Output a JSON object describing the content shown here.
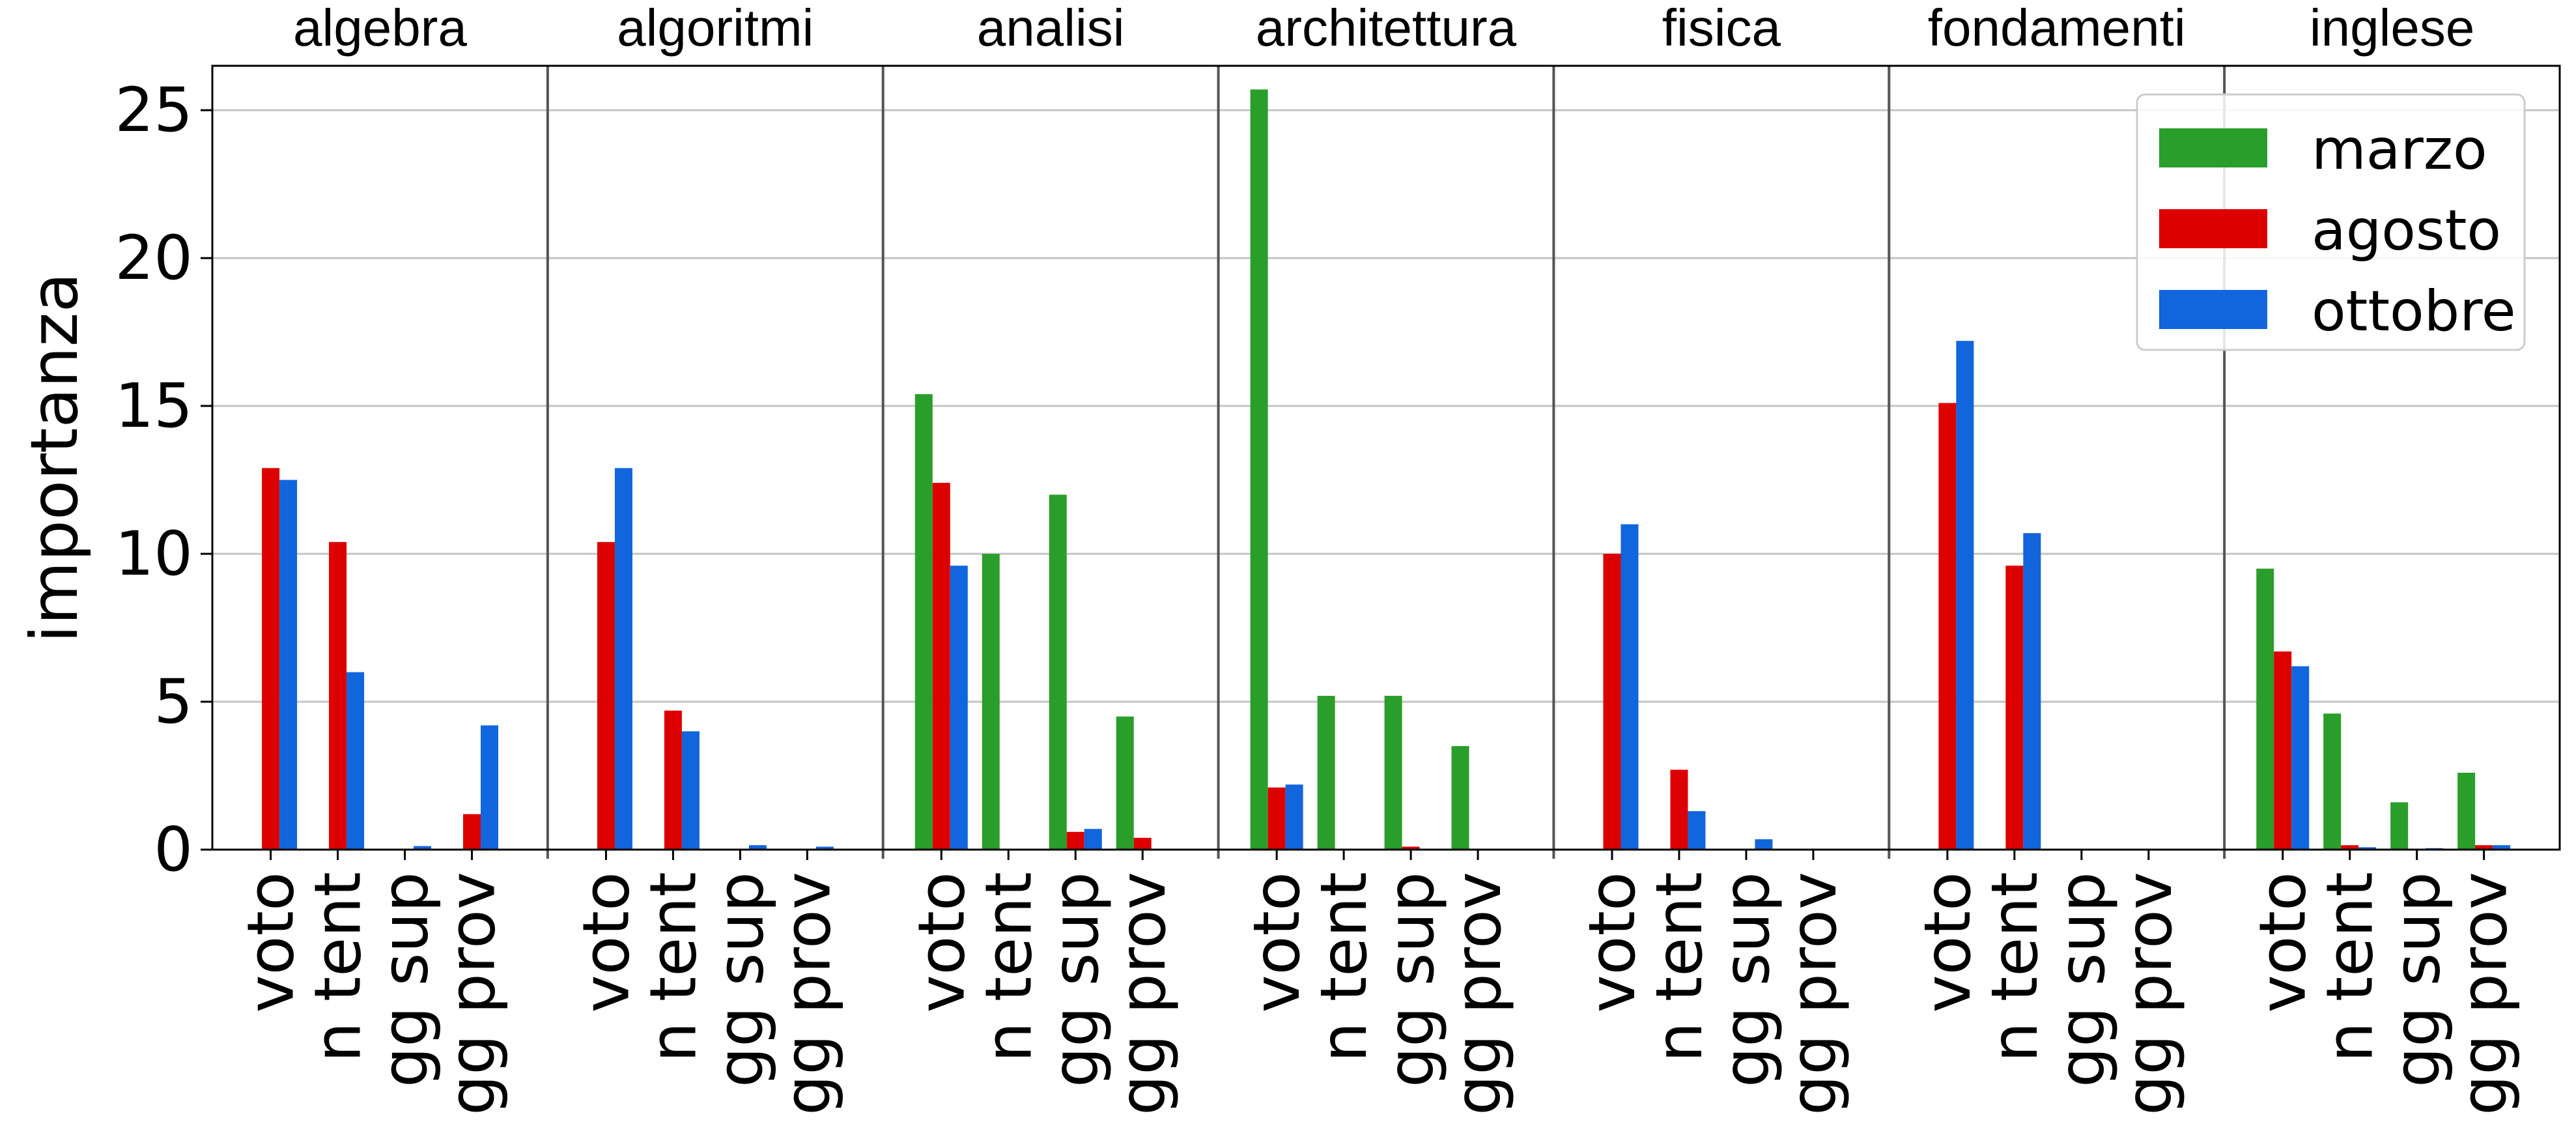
{
  "chart_data": {
    "type": "bar",
    "ylabel": "importanza",
    "xlabel": "",
    "ylim": [
      0,
      26.5
    ],
    "yticks": [
      0,
      5,
      10,
      15,
      20,
      25
    ],
    "grid": "horizontal",
    "legend_position": "top-right",
    "panel_categories": [
      "voto",
      "n tent",
      "gg sup",
      "gg prov"
    ],
    "series_meta": [
      {
        "name": "marzo",
        "color": "#2a9e2a"
      },
      {
        "name": "agosto",
        "color": "#dd0000"
      },
      {
        "name": "ottobre",
        "color": "#1166dd"
      }
    ],
    "panels": [
      {
        "title": "algebra",
        "series": [
          {
            "name": "marzo",
            "values": [
              0,
              0,
              0,
              0
            ]
          },
          {
            "name": "agosto",
            "values": [
              12.9,
              10.4,
              0.03,
              1.2
            ]
          },
          {
            "name": "ottobre",
            "values": [
              12.5,
              6.0,
              0.12,
              4.2
            ]
          }
        ]
      },
      {
        "title": "algoritmi",
        "series": [
          {
            "name": "marzo",
            "values": [
              0,
              0,
              0,
              0
            ]
          },
          {
            "name": "agosto",
            "values": [
              10.4,
              4.7,
              0,
              0
            ]
          },
          {
            "name": "ottobre",
            "values": [
              12.9,
              4.0,
              0.15,
              0.1
            ]
          }
        ]
      },
      {
        "title": "analisi",
        "series": [
          {
            "name": "marzo",
            "values": [
              15.4,
              10.0,
              12.0,
              4.5
            ]
          },
          {
            "name": "agosto",
            "values": [
              12.4,
              0,
              0.6,
              0.4
            ]
          },
          {
            "name": "ottobre",
            "values": [
              9.6,
              0,
              0.7,
              0
            ]
          }
        ]
      },
      {
        "title": "architettura",
        "series": [
          {
            "name": "marzo",
            "values": [
              25.7,
              5.2,
              5.2,
              3.5
            ]
          },
          {
            "name": "agosto",
            "values": [
              2.1,
              0,
              0.1,
              0
            ]
          },
          {
            "name": "ottobre",
            "values": [
              2.2,
              0,
              0,
              0
            ]
          }
        ]
      },
      {
        "title": "fisica",
        "series": [
          {
            "name": "marzo",
            "values": [
              0,
              0,
              0,
              0
            ]
          },
          {
            "name": "agosto",
            "values": [
              10.0,
              2.7,
              0,
              0
            ]
          },
          {
            "name": "ottobre",
            "values": [
              11.0,
              1.3,
              0.35,
              0
            ]
          }
        ]
      },
      {
        "title": "fondamenti",
        "series": [
          {
            "name": "marzo",
            "values": [
              0,
              0,
              0,
              0
            ]
          },
          {
            "name": "agosto",
            "values": [
              15.1,
              9.6,
              0,
              0
            ]
          },
          {
            "name": "ottobre",
            "values": [
              17.2,
              10.7,
              0,
              0.03
            ]
          }
        ]
      },
      {
        "title": "inglese",
        "series": [
          {
            "name": "marzo",
            "values": [
              9.5,
              4.6,
              1.6,
              2.6
            ]
          },
          {
            "name": "agosto",
            "values": [
              6.7,
              0.15,
              0,
              0.15
            ]
          },
          {
            "name": "ottobre",
            "values": [
              6.2,
              0.08,
              0.05,
              0.15
            ]
          }
        ]
      }
    ]
  }
}
